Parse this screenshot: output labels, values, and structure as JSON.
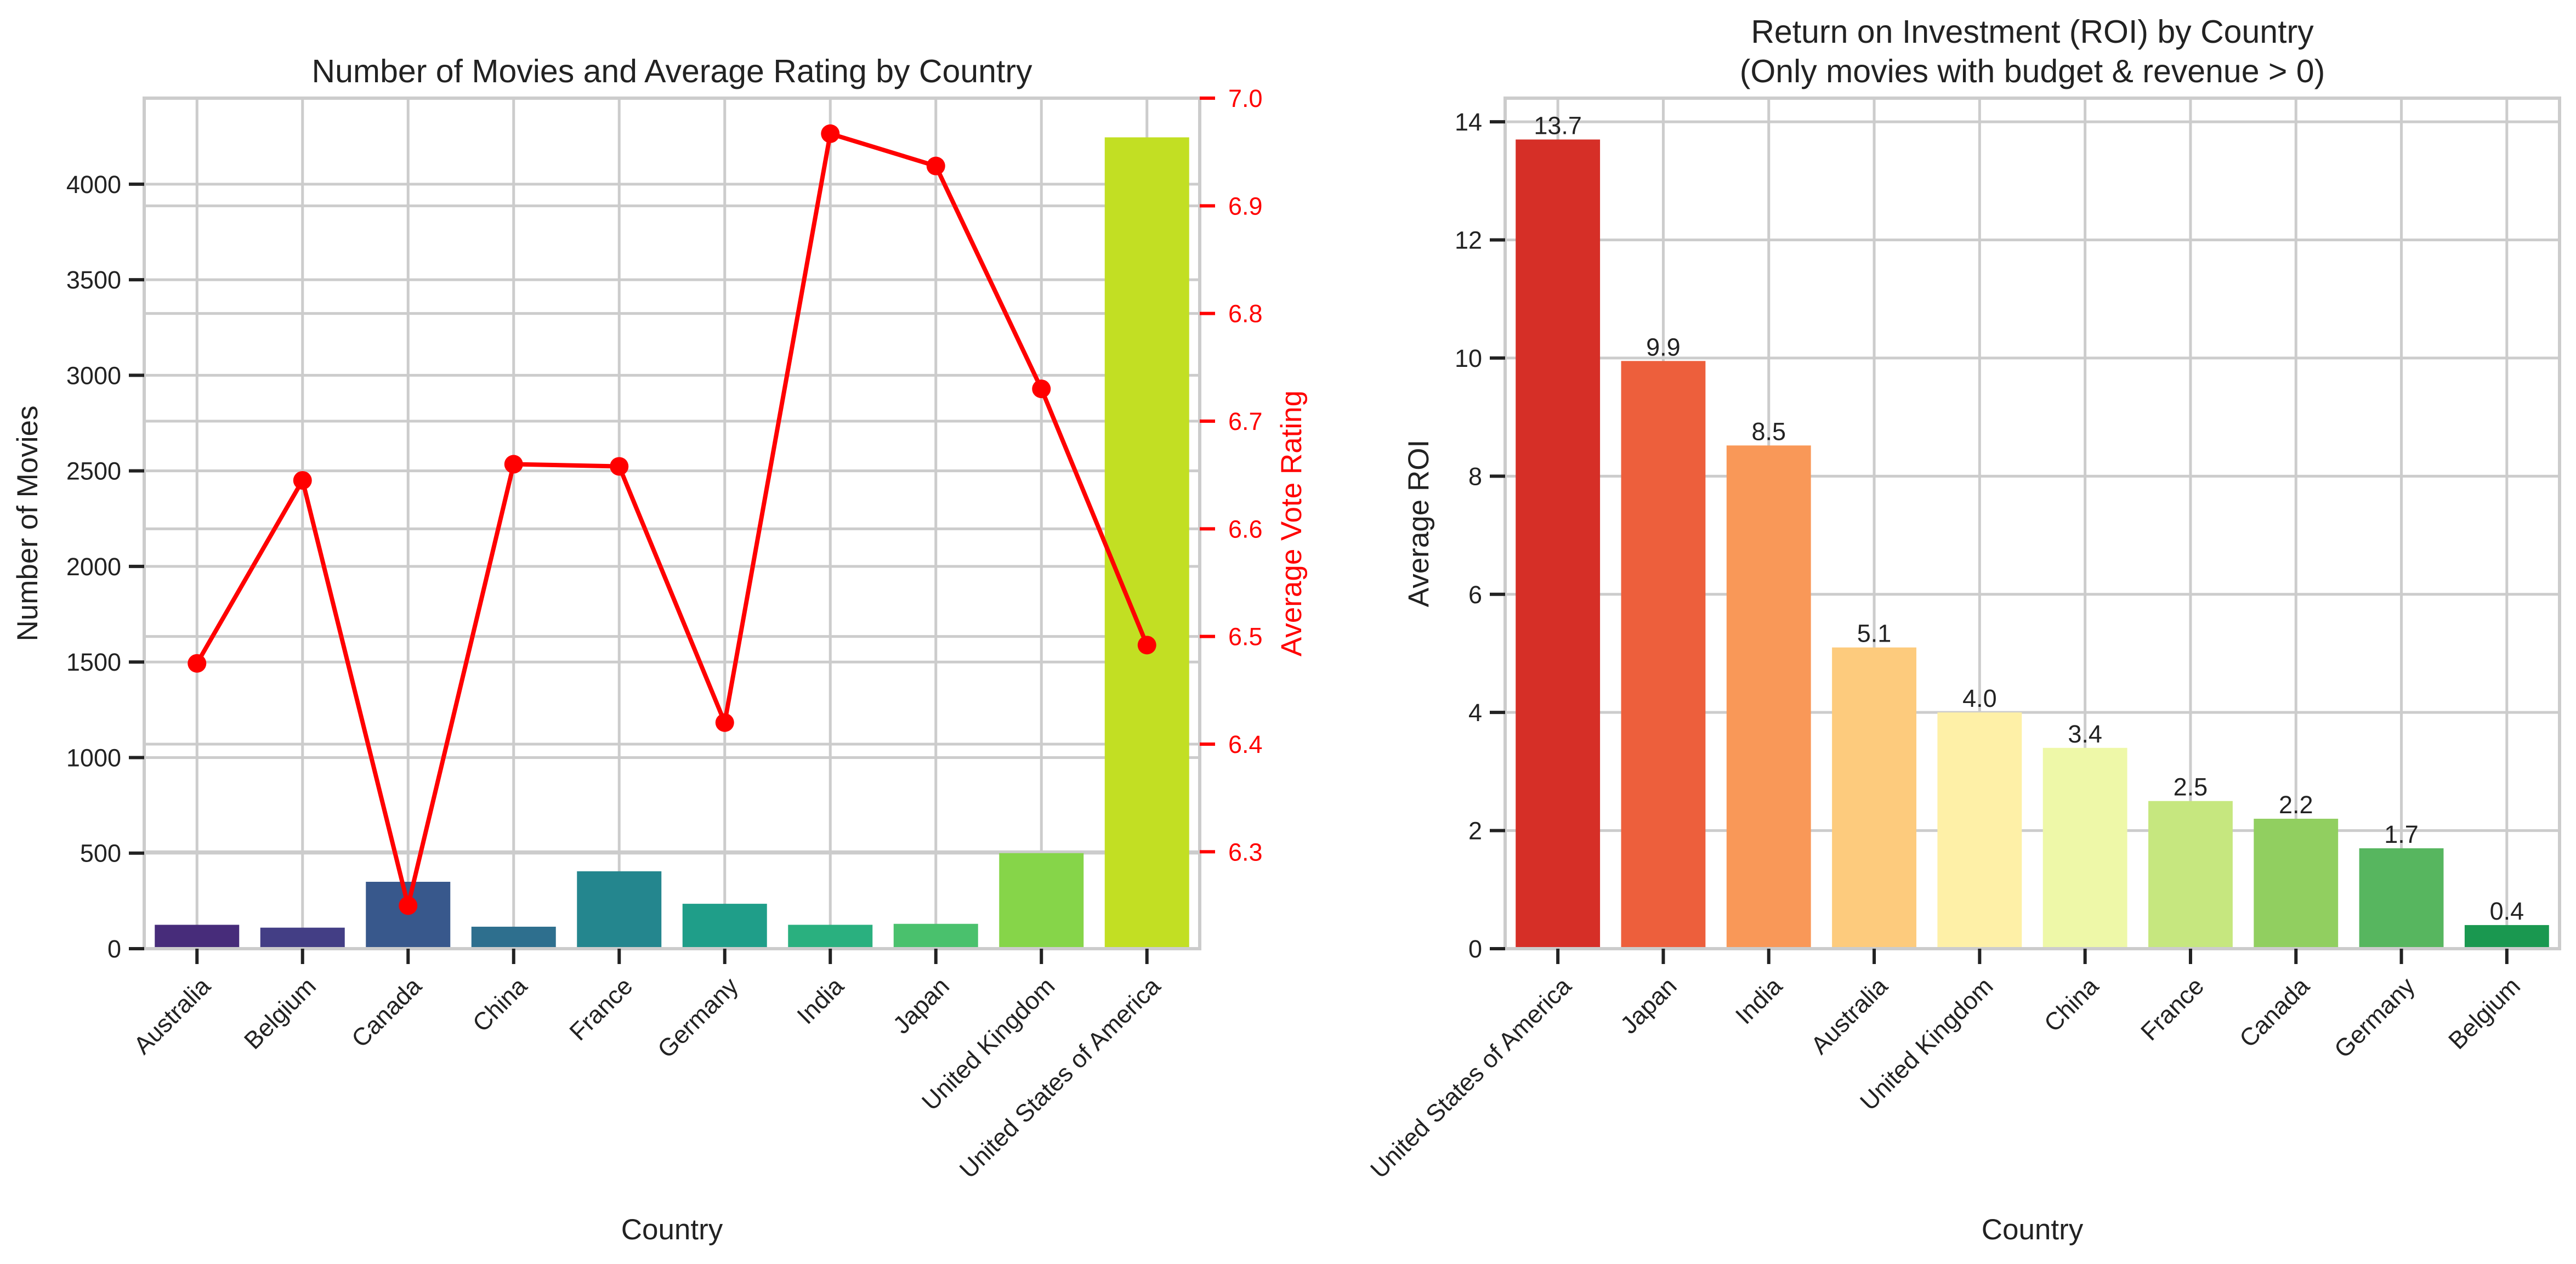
{
  "colors": {
    "grid": "#cccccc",
    "axis": "#cccccc",
    "tick": "#222222",
    "rating_line": "#ff0000"
  },
  "chart_data": [
    {
      "type": "bar",
      "title": "Number of Movies and Average Rating by Country",
      "xlabel": "Country",
      "ylabel": "Number of Movies",
      "ylabel_right": "Average Vote Rating",
      "categories": [
        "Australia",
        "Belgium",
        "Canada",
        "China",
        "France",
        "Germany",
        "India",
        "Japan",
        "United Kingdom",
        "United States of America"
      ],
      "ylim": [
        0,
        4450
      ],
      "yticks": [
        0,
        500,
        1000,
        1500,
        2000,
        2500,
        3000,
        3500,
        4000
      ],
      "ylim_right": [
        6.21,
        7.0
      ],
      "yticks_right": [
        6.3,
        6.4,
        6.5,
        6.6,
        6.7,
        6.8,
        6.9,
        7.0
      ],
      "grid": true,
      "series": [
        {
          "name": "Number of Movies",
          "type": "bar",
          "values": [
            125,
            110,
            350,
            115,
            405,
            235,
            125,
            130,
            500,
            4245
          ],
          "colors": [
            "#472c7a",
            "#433e85",
            "#38588c",
            "#2e6f8e",
            "#24868e",
            "#1f9e89",
            "#2ab07f",
            "#4ac16d",
            "#86d549",
            "#c2df23"
          ]
        },
        {
          "name": "Average Vote Rating",
          "type": "line",
          "axis": "right",
          "color": "#ff0000",
          "values": [
            6.475,
            6.645,
            6.25,
            6.66,
            6.658,
            6.42,
            6.967,
            6.937,
            6.73,
            6.492
          ]
        }
      ]
    },
    {
      "type": "bar",
      "title": "Return on Investment (ROI) by Country",
      "subtitle": "(Only movies with budget & revenue > 0)",
      "xlabel": "Country",
      "ylabel": "Average ROI",
      "categories": [
        "United States of America",
        "Japan",
        "India",
        "Australia",
        "United Kingdom",
        "China",
        "France",
        "Canada",
        "Germany",
        "Belgium"
      ],
      "values": [
        13.7,
        9.95,
        8.52,
        5.1,
        4.0,
        3.4,
        2.5,
        2.2,
        1.7,
        0.4
      ],
      "data_labels": [
        "13.7",
        "9.9",
        "8.5",
        "5.1",
        "4.0",
        "3.4",
        "2.5",
        "2.2",
        "1.7",
        "0.4"
      ],
      "colors": [
        "#d62f27",
        "#ed5f3c",
        "#f99858",
        "#fdcb7d",
        "#fef0a7",
        "#eef8a8",
        "#c6e77f",
        "#91cf60",
        "#57b65f",
        "#1a9850"
      ],
      "ylim": [
        0,
        14.4
      ],
      "yticks": [
        0,
        2,
        4,
        6,
        8,
        10,
        12,
        14
      ],
      "grid": true
    }
  ]
}
